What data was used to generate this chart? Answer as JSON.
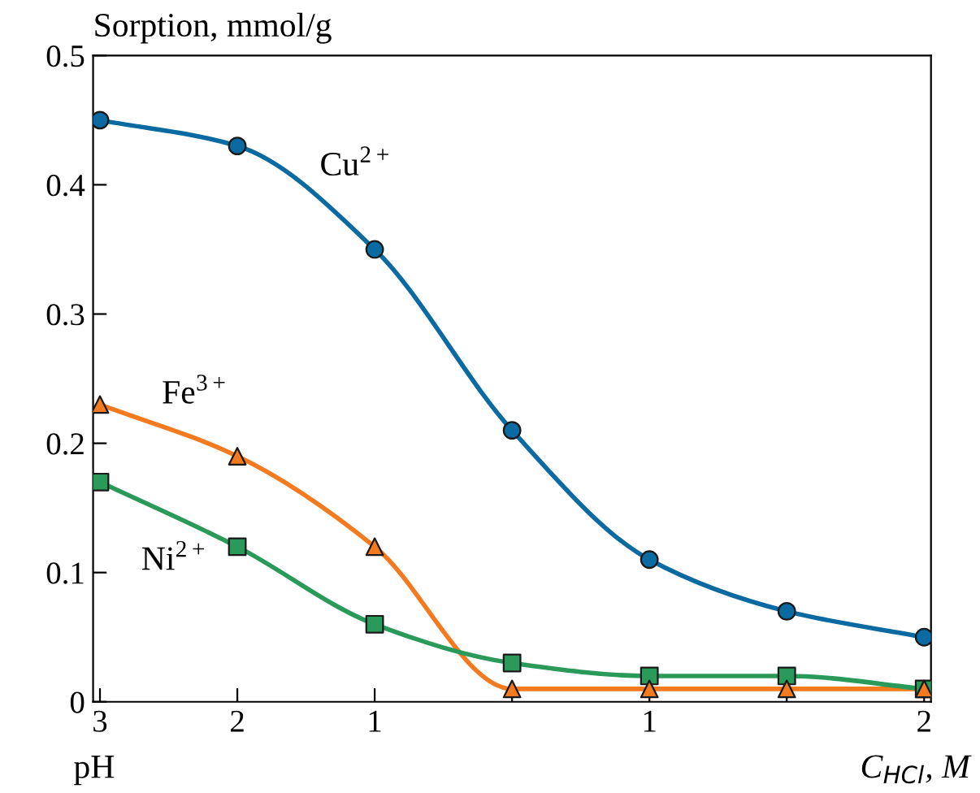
{
  "chart_data": {
    "type": "line",
    "ylabel": "Sorption, mmol/g",
    "xlabel": "pH",
    "annotations": [
      "C$_{HCl}$, M"
    ],
    "categories": [
      "3",
      "2",
      "1",
      null,
      "1",
      null,
      "2"
    ],
    "ylim": [
      0,
      0.5
    ],
    "yticks": [
      0,
      0.1,
      0.2,
      0.3,
      0.4,
      0.5
    ],
    "grid": false,
    "legend": false,
    "series": [
      {
        "name": "Cu$^{2+}$",
        "color": "#0a6aa1",
        "marker": "circle",
        "values": [
          0.45,
          0.43,
          0.35,
          0.21,
          0.11,
          0.07,
          0.05
        ]
      },
      {
        "name": "Fe$^{3+}$",
        "color": "#f47a20",
        "marker": "triangle",
        "values": [
          0.23,
          0.19,
          0.12,
          0.01,
          0.01,
          0.01,
          0.01
        ]
      },
      {
        "name": "Ni$^{2+}$",
        "color": "#2a9a5a",
        "marker": "square",
        "values": [
          0.17,
          0.12,
          0.06,
          0.03,
          0.02,
          0.02,
          0.01
        ]
      }
    ]
  }
}
